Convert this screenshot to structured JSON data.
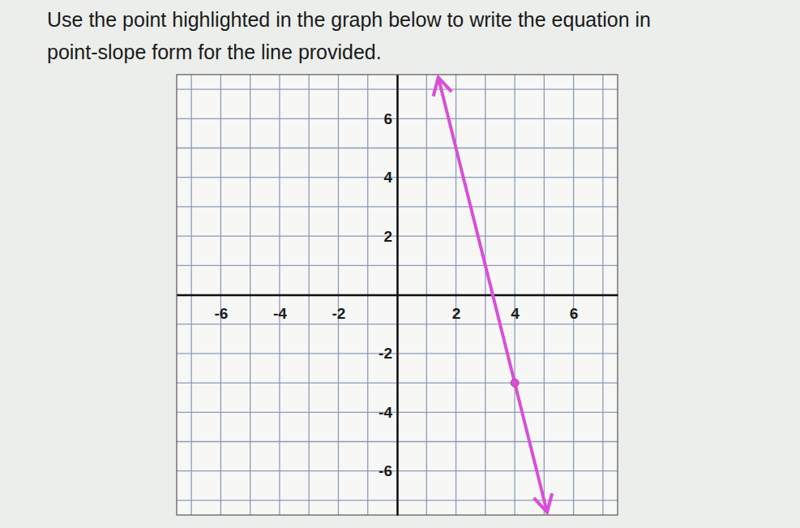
{
  "chart_data": {
    "type": "line",
    "title": [
      "Use the point highlighted in the graph below to write the equation in",
      "point-slope form for the line provided."
    ],
    "xlim": [
      -7.5,
      7.5
    ],
    "ylim": [
      -7.5,
      7.5
    ],
    "xticks": [
      -6,
      -4,
      -2,
      2,
      4,
      6
    ],
    "yticks": [
      6,
      4,
      2,
      -2,
      -4,
      -6
    ],
    "xgrid": [
      -7,
      -6,
      -5,
      -4,
      -3,
      -2,
      -1,
      0,
      1,
      2,
      3,
      4,
      5,
      6,
      7
    ],
    "ygrid": [
      -7,
      -6,
      -5,
      -4,
      -3,
      -2,
      -1,
      0,
      1,
      2,
      3,
      4,
      5,
      6,
      7
    ],
    "grid": true,
    "series": [
      {
        "type": "line",
        "color": "#d94fd8",
        "x": [
          1.4,
          4,
          5.1
        ],
        "values": [
          7.4,
          -3,
          -7.4
        ]
      },
      {
        "type": "scatter",
        "color": "#d94fd8",
        "marker": "circle",
        "x": [
          4
        ],
        "values": [
          -3
        ]
      }
    ]
  }
}
